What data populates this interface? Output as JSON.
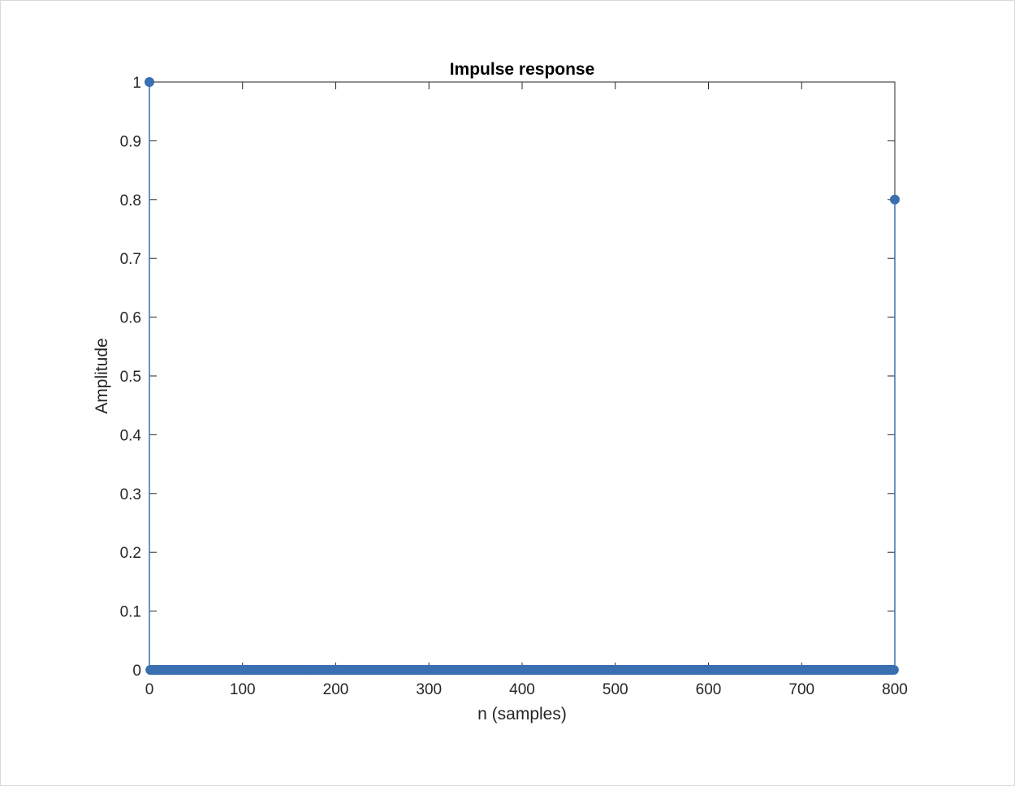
{
  "chart_data": {
    "type": "scatter",
    "style": "stem",
    "title": "Impulse response",
    "xlabel": "n (samples)",
    "ylabel": "Amplitude",
    "xlim": [
      0,
      800
    ],
    "ylim": [
      0,
      1
    ],
    "xticks": [
      0,
      100,
      200,
      300,
      400,
      500,
      600,
      700,
      800
    ],
    "yticks": [
      0,
      0.1,
      0.2,
      0.3,
      0.4,
      0.5,
      0.6,
      0.7,
      0.8,
      0.9,
      1
    ],
    "xtick_labels": [
      "0",
      "100",
      "200",
      "300",
      "400",
      "500",
      "600",
      "700",
      "800"
    ],
    "ytick_labels": [
      "0",
      "0.1",
      "0.2",
      "0.3",
      "0.4",
      "0.5",
      "0.6",
      "0.7",
      "0.8",
      "0.9",
      "1"
    ],
    "grid": false,
    "series": [
      {
        "x_start": 0,
        "x_end": 800,
        "default_value": 0,
        "points": [
          {
            "x": 0,
            "y": 1
          },
          {
            "x": 800,
            "y": 0.8
          }
        ],
        "color": "#3a6fb0"
      }
    ]
  }
}
